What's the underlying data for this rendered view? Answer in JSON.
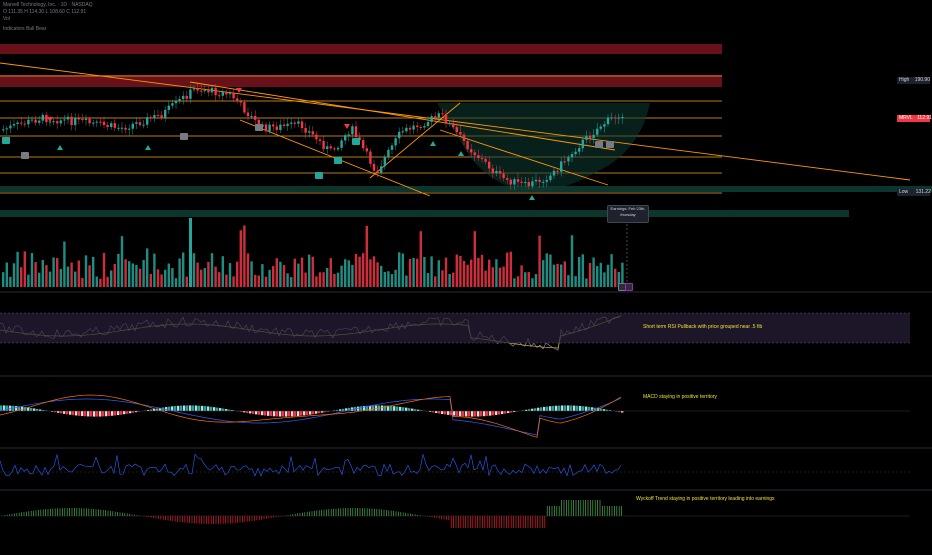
{
  "header": {
    "symbol_line": "Marvell Technology, Inc. · 1D · NASDAQ",
    "ohlc_line": "O 111.35  H 114.30  L 108.60  C 112.91",
    "vol_line": "Vol",
    "indicator_line": "Indicators  Bull  Bear"
  },
  "price_scale": {
    "high_label": "High",
    "high_value": "190.90",
    "last_label": "MRVL",
    "last_value": "112.91",
    "low_label": "Low",
    "low_value": "131.22"
  },
  "earnings": {
    "line1": "Earnings: Feb 23th,",
    "line2": "thursday"
  },
  "annotations": {
    "rsi_note": "Short term RSI Pullback with price grouped near .5 fib",
    "macd_note": "MACD staying in positive territory",
    "wyckoff_note": "Wyckoff Trend staying in positive territory leading into earnings"
  },
  "colors": {
    "bull": "#26a69a",
    "bear": "#f23645",
    "fib": "#f5a623",
    "trend": "#ff9800",
    "resistance_zone": "#7a1420",
    "support_zone": "#0d3b33",
    "rsi": "#9aa0b0",
    "rsi_ma": "#c8b32a",
    "macd_line": "#2962ff",
    "signal_line": "#ff6d00",
    "wyckoff_pos": "#4caf50",
    "wyckoff_neg": "#e91e2c"
  },
  "icons": {
    "long_signal": "triangle-up-icon",
    "short_signal": "triangle-down-icon",
    "buy_marker": "buy-label-icon",
    "earnings_marker": "earnings-icon"
  }
}
